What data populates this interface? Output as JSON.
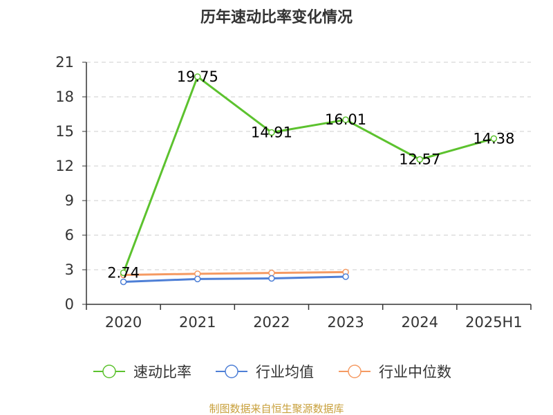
{
  "chart_data": {
    "type": "line",
    "title": "历年速动比率变化情况",
    "categories": [
      "2020",
      "2021",
      "2022",
      "2023",
      "2024",
      "2025H1"
    ],
    "y_ticks": [
      0,
      3,
      6,
      9,
      12,
      15,
      18,
      21
    ],
    "ylim": [
      0,
      21
    ],
    "grid": true,
    "legend_position": "bottom",
    "series": [
      {
        "name": "速动比率",
        "color": "#5cc22e",
        "values": [
          2.74,
          19.75,
          14.91,
          16.01,
          12.57,
          14.38
        ],
        "labels": [
          "2.74",
          "19.75",
          "14.91",
          "16.01",
          "12.57",
          "14.38"
        ]
      },
      {
        "name": "行业均值",
        "color": "#4e7fd6",
        "values": [
          1.95,
          2.2,
          2.25,
          2.4,
          null,
          null
        ]
      },
      {
        "name": "行业中位数",
        "color": "#f59a62",
        "values": [
          2.55,
          2.65,
          2.72,
          2.8,
          null,
          null
        ]
      }
    ],
    "source": "制图数据来自恒生聚源数据库"
  }
}
